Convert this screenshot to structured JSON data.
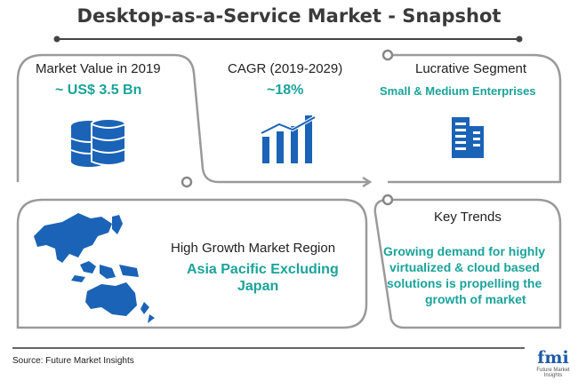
{
  "title": "Desktop-as-a-Service Market - Snapshot",
  "panels": {
    "market_value": {
      "label": "Market Value in 2019",
      "value": "~ US$ 3.5 Bn"
    },
    "cagr": {
      "label": "CAGR (2019-2029)",
      "value": "~18%"
    },
    "segment": {
      "label": "Lucrative Segment",
      "value": "Small & Medium Enterprises"
    },
    "region": {
      "label": "High Growth Market Region",
      "value_line1": "Asia Pacific Excluding",
      "value_line2": "Japan"
    },
    "trends": {
      "label": "Key Trends",
      "line1": "Growing demand for highly",
      "line2": "virtualized & cloud based",
      "line3": "solutions is propelling the",
      "line4": "growth of market"
    }
  },
  "icons": [
    "database-icon",
    "bar-chart-icon",
    "building-icon",
    "asia-pacific-map-icon",
    "fmi-logo"
  ],
  "source": "Source: Future Market Insights",
  "logo": {
    "word": "fmi",
    "tagline": "Future Market Insights"
  },
  "colors": {
    "accent": "#1aa39a",
    "icon_blue": "#1b63b7",
    "outline": "#9a9a9a",
    "text": "#222222"
  }
}
